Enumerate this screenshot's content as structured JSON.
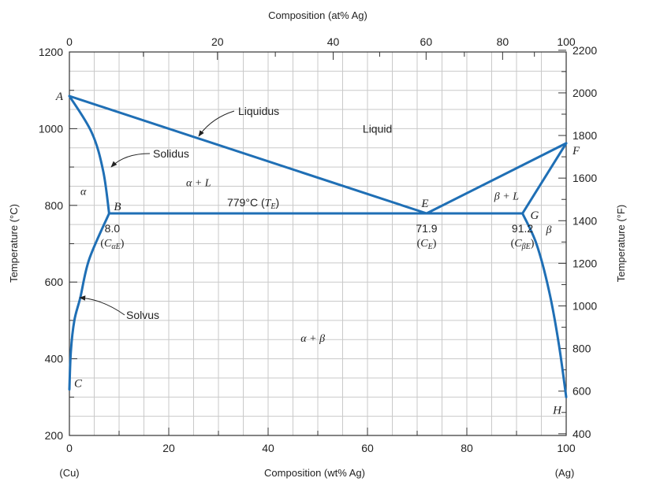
{
  "chart_data": {
    "type": "line",
    "title": "",
    "xlabel": "Composition (wt% Ag)",
    "x2label": "Composition (at% Ag)",
    "ylabel": "Temperature (°C)",
    "y2label": "Temperature (°F)",
    "xlim": [
      0,
      100
    ],
    "ylim": [
      200,
      1200
    ],
    "y2lim": [
      392,
      2192
    ],
    "grid": true,
    "x_ticks": [
      0,
      20,
      40,
      60,
      80,
      100
    ],
    "y_ticks": [
      200,
      400,
      600,
      800,
      1000,
      1200
    ],
    "x2_ticks": [
      0,
      20,
      40,
      60,
      80,
      100
    ],
    "x2_tick_positions_wt": [
      0,
      29.8,
      53.1,
      71.8,
      87.2,
      100
    ],
    "y2_ticks": [
      400,
      600,
      800,
      1000,
      1200,
      1400,
      1600,
      1800,
      2000,
      2200
    ],
    "end_labels": {
      "left": "(Cu)",
      "right": "(Ag)"
    },
    "series": [
      {
        "x": [
          0,
          71.9,
          100
        ],
        "y": [
          1085,
          779,
          962
        ]
      },
      {
        "x": [
          0,
          4.5,
          6.8,
          8.0
        ],
        "y": [
          1085,
          990,
          890,
          779
        ]
      },
      {
        "x": [
          0,
          0.3,
          1,
          2.2,
          4,
          8.0
        ],
        "y": [
          320,
          420,
          500,
          560,
          660,
          779
        ]
      },
      {
        "x": [
          8.0,
          91.2
        ],
        "y": [
          779,
          779
        ]
      },
      {
        "x": [
          100,
          91.2
        ],
        "y": [
          962,
          779
        ]
      },
      {
        "x": [
          91.2,
          94,
          96.5,
          98.5,
          100
        ],
        "y": [
          779,
          700,
          580,
          440,
          300
        ]
      }
    ],
    "annotations": {
      "points": [
        {
          "label": "A",
          "x": 0,
          "y": 1085
        },
        {
          "label": "B",
          "x": 8.0,
          "y": 779
        },
        {
          "label": "C",
          "x": 0,
          "y": 320
        },
        {
          "label": "E",
          "x": 71.9,
          "y": 779
        },
        {
          "label": "F",
          "x": 100,
          "y": 962
        },
        {
          "label": "G",
          "x": 91.2,
          "y": 779
        },
        {
          "label": "H",
          "x": 100,
          "y": 300
        }
      ],
      "regions": [
        {
          "label": "Liquid",
          "x": 62,
          "y": 1000
        },
        {
          "label": "α + L",
          "x": 26,
          "y": 860
        },
        {
          "label": "β + L",
          "x": 88,
          "y": 825
        },
        {
          "label": "α",
          "x": 2.8,
          "y": 838
        },
        {
          "label": "β",
          "x": 96.5,
          "y": 738
        },
        {
          "label": "α + β",
          "x": 49,
          "y": 455
        }
      ],
      "values": [
        {
          "value": "8.0",
          "sub": "αE",
          "x": 8.0
        },
        {
          "value": "71.9",
          "sub": "E",
          "x": 71.9
        },
        {
          "value": "91.2",
          "sub": "βE",
          "x": 91.2
        }
      ],
      "eutectic_temperature": "779°C",
      "lines": [
        "Liquidus",
        "Solidus",
        "Solvus"
      ]
    }
  }
}
